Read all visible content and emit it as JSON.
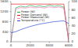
{
  "chart_data": {
    "type": "line",
    "x": [
      0,
      500,
      1000,
      1500,
      2000,
      2500,
      3000,
      3500,
      4000,
      4500,
      5000,
      5500,
      6000
    ],
    "xlim": [
      0,
      6000
    ],
    "xticks": [
      0,
      2000,
      4000,
      6000
    ],
    "ylim": [
      0,
      1600
    ],
    "yticks": [
      0,
      400,
      800,
      1200,
      1600
    ],
    "y2lim": [
      0,
      100
    ],
    "y2ticks": [
      0,
      20,
      40,
      60,
      80,
      100
    ],
    "legend": "upper left",
    "series": [
      {
        "name": "Power (W)",
        "color": "#22b14c",
        "values": [
          0,
          1350,
          1420,
          1380,
          1450,
          1400,
          1430,
          1390,
          1460,
          1410,
          1440,
          1380,
          100
        ]
      },
      {
        "name": "Power Demand (W)",
        "color": "#e02020",
        "values": [
          1500,
          1500,
          1500,
          1500,
          1500,
          1500,
          1500,
          1500,
          1500,
          1500,
          1500,
          1500,
          0
        ]
      },
      {
        "name": "Power Measured (W)",
        "color": "#f080c0",
        "values": [
          0,
          1300,
          1360,
          1340,
          1380,
          1350,
          1370,
          1340,
          1390,
          1360,
          1380,
          1330,
          80
        ]
      },
      {
        "name": "Temperature (°C)",
        "color": "#3050d0",
        "axis": "y2",
        "values": [
          22,
          25,
          30,
          34,
          38,
          41,
          44,
          46,
          48,
          50,
          51,
          52,
          45
        ]
      }
    ]
  }
}
